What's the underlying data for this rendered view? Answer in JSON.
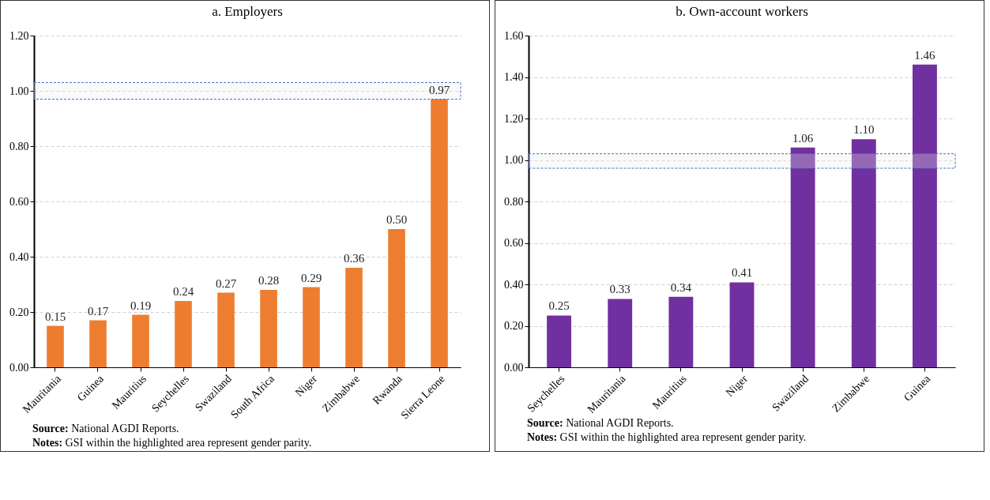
{
  "chart_data": [
    {
      "type": "bar",
      "title": "a. Employers",
      "categories": [
        "Mauritania",
        "Guinea",
        "Mauritius",
        "Seychelles",
        "Swaziland",
        "South Africa",
        "Niger",
        "Zimbabwe",
        "Rwanda",
        "Sierra Leone"
      ],
      "values": [
        0.15,
        0.17,
        0.19,
        0.24,
        0.27,
        0.28,
        0.29,
        0.36,
        0.5,
        0.97
      ],
      "value_labels": [
        "0.15",
        "0.17",
        "0.19",
        "0.24",
        "0.27",
        "0.28",
        "0.29",
        "0.36",
        "0.50",
        "0.97"
      ],
      "color": "#ed7d31",
      "ylim": [
        0,
        1.2
      ],
      "yticks": [
        {
          "value": 0,
          "label": "0.00"
        },
        {
          "value": 0.2,
          "label": "0.20"
        },
        {
          "value": 0.4,
          "label": "0.40"
        },
        {
          "value": 0.6,
          "label": "0.60"
        },
        {
          "value": 0.8,
          "label": "0.80"
        },
        {
          "value": 1.0,
          "label": "1.00"
        },
        {
          "value": 1.2,
          "label": "1.20"
        }
      ],
      "bands": [
        {
          "axis": "y",
          "from": 0.97,
          "to": 1.03,
          "color": "#4472c4"
        }
      ],
      "grid": "y",
      "annotations": [
        "Source: National AGDI Reports.",
        "Notes: GSI within the highlighted area represent gender parity."
      ]
    },
    {
      "type": "bar",
      "title": "b. Own-account workers",
      "categories": [
        "Seychelles",
        "Mauritania",
        "Mauritius",
        "Niger",
        "Swaziland",
        "Zimbabwe",
        "Guinea"
      ],
      "values": [
        0.25,
        0.33,
        0.34,
        0.41,
        1.06,
        1.1,
        1.46
      ],
      "value_labels": [
        "0.25",
        "0.33",
        "0.34",
        "0.41",
        "1.06",
        "1.10",
        "1.46"
      ],
      "color": "#7030a0",
      "ylim": [
        0,
        1.6
      ],
      "yticks": [
        {
          "value": 0,
          "label": "0.00"
        },
        {
          "value": 0.2,
          "label": "0.20"
        },
        {
          "value": 0.4,
          "label": "0.40"
        },
        {
          "value": 0.6,
          "label": "0.60"
        },
        {
          "value": 0.8,
          "label": "0.80"
        },
        {
          "value": 1.0,
          "label": "1.00"
        },
        {
          "value": 1.2,
          "label": "1.20"
        },
        {
          "value": 1.4,
          "label": "1.40"
        },
        {
          "value": 1.6,
          "label": "1.60"
        }
      ],
      "bands": [
        {
          "axis": "y",
          "from": 0.96,
          "to": 1.03,
          "color": "#4472c4"
        }
      ],
      "grid": "y",
      "annotations": [
        "Source: National AGDI Reports.",
        "Notes: GSI within the highlighted area represent gender parity."
      ]
    }
  ]
}
